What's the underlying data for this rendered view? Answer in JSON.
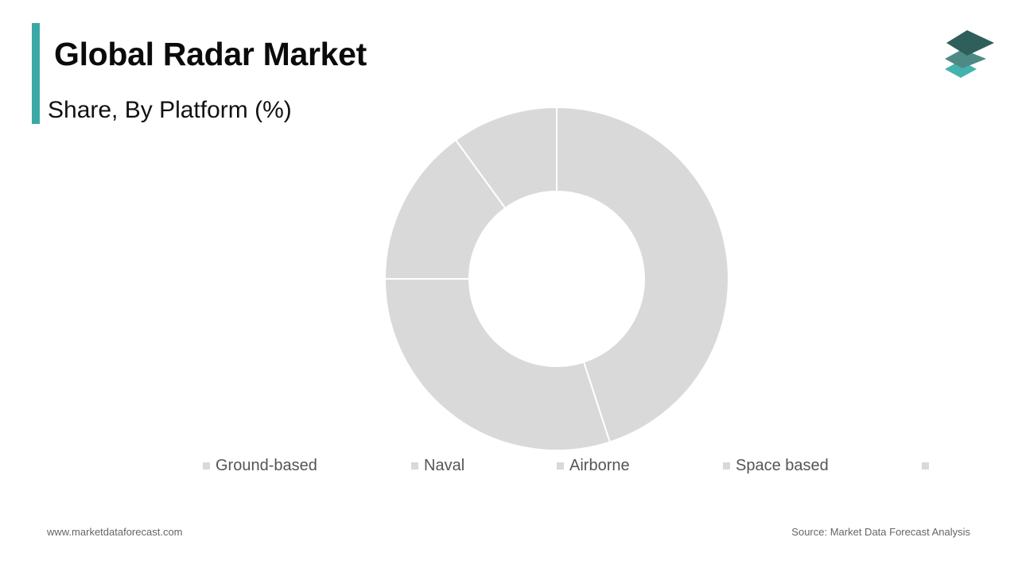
{
  "header": {
    "title": "Global Radar Market",
    "subtitle": "Share, By Platform (%)"
  },
  "colors": {
    "accent": "#3aa9a6",
    "slice_fill": "#d9d9d9",
    "slice_stroke": "#ffffff",
    "logo_dark": "#2f5f5a",
    "logo_mid": "#4e8a85",
    "logo_light": "#45b3ad"
  },
  "logo": {
    "icon": "layered-stack-logo-icon"
  },
  "chart_data": {
    "type": "pie",
    "variant": "donut",
    "categories": [
      "Ground-based",
      "Naval",
      "Airborne",
      "Space based",
      ""
    ],
    "values": [
      45,
      30,
      15,
      10,
      0
    ],
    "colors": [
      "#d9d9d9",
      "#d9d9d9",
      "#d9d9d9",
      "#d9d9d9",
      "#d9d9d9"
    ],
    "legend": "bottom"
  },
  "footer": {
    "website": "www.marketdataforecast.com",
    "source": "Source: Market Data Forecast Analysis"
  }
}
